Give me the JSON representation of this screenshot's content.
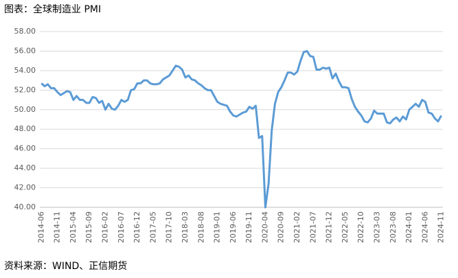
{
  "chart_data": {
    "type": "line",
    "title": "图表：全球制造业 PMI",
    "source": "资料来源：WIND、正信期货",
    "categories": [
      "2014-06",
      null,
      null,
      null,
      null,
      "2014-11",
      null,
      null,
      null,
      null,
      "2015-04",
      null,
      null,
      null,
      null,
      "2015-09",
      null,
      null,
      null,
      null,
      "2016-02",
      null,
      null,
      null,
      null,
      "2016-07",
      null,
      null,
      null,
      null,
      "2016-12",
      null,
      null,
      null,
      null,
      "2017-05",
      null,
      null,
      null,
      null,
      "2017-10",
      null,
      null,
      null,
      null,
      "2018-03",
      null,
      null,
      null,
      null,
      "2018-08",
      null,
      null,
      null,
      null,
      "2019-01",
      null,
      null,
      null,
      null,
      "2019-06",
      null,
      null,
      null,
      null,
      "2019-11",
      null,
      null,
      null,
      null,
      "2020-04",
      null,
      null,
      null,
      null,
      "2020-09",
      null,
      null,
      null,
      null,
      "2021-02",
      null,
      null,
      null,
      null,
      "2021-07",
      null,
      null,
      null,
      null,
      "2021-12",
      null,
      null,
      null,
      null,
      "2022-05",
      null,
      null,
      null,
      null,
      "2022-10",
      null,
      null,
      null,
      null,
      "2023-03",
      null,
      null,
      null,
      null,
      "2023-08",
      null,
      null,
      null,
      null,
      "2024-01",
      null,
      null,
      null,
      null,
      "2024-06",
      null,
      null,
      null,
      null,
      "2024-11"
    ],
    "values": [
      52.7,
      52.4,
      52.6,
      52.2,
      52.2,
      51.8,
      51.5,
      51.7,
      51.9,
      51.8,
      51.0,
      51.4,
      51.0,
      51.0,
      50.7,
      50.7,
      51.3,
      51.2,
      50.7,
      50.9,
      50.0,
      50.6,
      50.1,
      50.0,
      50.4,
      51.0,
      50.8,
      51.0,
      52.0,
      52.1,
      52.7,
      52.7,
      53.0,
      53.0,
      52.7,
      52.6,
      52.6,
      52.7,
      53.1,
      53.3,
      53.5,
      54.0,
      54.5,
      54.4,
      54.1,
      53.3,
      53.5,
      53.1,
      53.0,
      52.7,
      52.5,
      52.2,
      52.0,
      52.0,
      51.4,
      50.8,
      50.6,
      50.5,
      50.4,
      49.8,
      49.4,
      49.3,
      49.5,
      49.7,
      49.8,
      50.3,
      50.1,
      50.4,
      47.1,
      47.3,
      40.0,
      42.4,
      47.9,
      50.6,
      51.8,
      52.3,
      53.0,
      53.8,
      53.8,
      53.6,
      53.9,
      55.0,
      55.9,
      56.0,
      55.5,
      55.4,
      54.1,
      54.1,
      54.3,
      54.2,
      54.3,
      53.2,
      53.7,
      52.9,
      52.3,
      52.3,
      52.2,
      51.1,
      50.3,
      49.8,
      49.4,
      48.8,
      48.7,
      49.1,
      49.9,
      49.6,
      49.6,
      49.6,
      48.7,
      48.6,
      49.0,
      49.2,
      48.8,
      49.3,
      49.0,
      50.0,
      50.3,
      50.6,
      50.3,
      51.0,
      50.8,
      49.7,
      49.6,
      49.1,
      48.8,
      49.4
    ],
    "color": "#5b9bd5",
    "ylim": [
      40,
      58
    ],
    "yticks": [
      {
        "value": 40,
        "label": "40.00"
      },
      {
        "value": 42,
        "label": "42.00"
      },
      {
        "value": 44,
        "label": "44.00"
      },
      {
        "value": 46,
        "label": "46.00"
      },
      {
        "value": 48,
        "label": "48.00"
      },
      {
        "value": 50,
        "label": "50.00"
      },
      {
        "value": 52,
        "label": "52.00"
      },
      {
        "value": 54,
        "label": "54.00"
      },
      {
        "value": 56,
        "label": "56.00"
      },
      {
        "value": 58,
        "label": "58.00"
      }
    ],
    "grid": true
  }
}
